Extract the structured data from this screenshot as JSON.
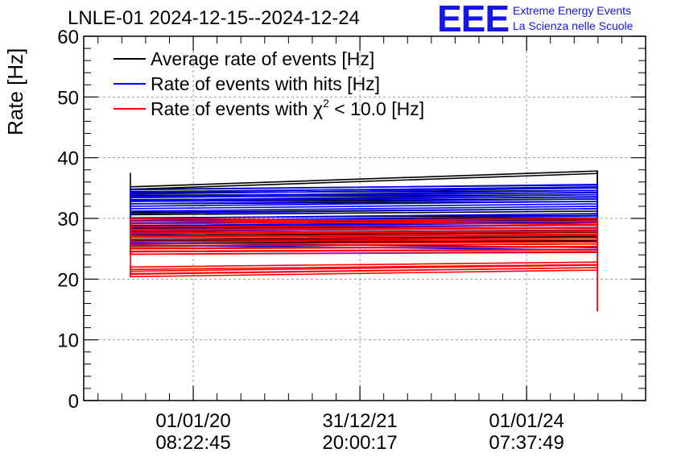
{
  "header": {
    "title": "LNLE-01 2024-12-15--2024-12-24",
    "logo": "EEE",
    "brand_line1": "Extreme Energy Events",
    "brand_line2": "La Scienza nelle Scuole"
  },
  "colors": {
    "black": "#000000",
    "blue": "#0000ff",
    "red": "#ff0000",
    "brand": "#1515e6"
  },
  "chart_data": {
    "type": "line",
    "ylabel": "Rate [Hz]",
    "xlabel": "",
    "ylim": [
      0,
      60
    ],
    "y_ticks": [
      "0",
      "10",
      "20",
      "30",
      "40",
      "50",
      "60"
    ],
    "x_ticks": [
      {
        "line1": "01/01/20",
        "line2": "08:22:45",
        "t": 0.13
      },
      {
        "line1": "31/12/21",
        "line2": "20:00:17",
        "t": 0.48
      },
      {
        "line1": "01/01/24",
        "line2": "07:37:49",
        "t": 0.83
      }
    ],
    "x_range": [
      -0.1,
      1.08
    ],
    "grid": true,
    "legend_position": "top-left",
    "series": [
      {
        "name": "Average rate of events [Hz]",
        "legend": "Average rate of events [Hz]",
        "color": "black",
        "x": [
          0,
          1
        ],
        "bands": [
          [
            35.2,
            37.8
          ],
          [
            34.8,
            35.5
          ],
          [
            34.2,
            34.6
          ],
          [
            33.5,
            33.9
          ],
          [
            32.8,
            33.2
          ],
          [
            31.0,
            31.6
          ],
          [
            30.1,
            30.5
          ],
          [
            29.2,
            29.8
          ],
          [
            28.4,
            28.9
          ],
          [
            27.6,
            28.1
          ],
          [
            27.0,
            27.4
          ],
          [
            26.3,
            26.8
          ],
          [
            25.8,
            26.2
          ]
        ],
        "end_drop_min": 25.5
      },
      {
        "name": "Rate of events with hits [Hz]",
        "legend": "Rate of events with hits [Hz]",
        "color": "blue",
        "x": [
          0,
          1
        ],
        "bands": [
          [
            34.7,
            35.6
          ],
          [
            34.0,
            35.0
          ],
          [
            33.4,
            34.3
          ],
          [
            32.8,
            33.6
          ],
          [
            32.0,
            32.8
          ],
          [
            31.2,
            32.0
          ],
          [
            30.0,
            30.8
          ],
          [
            29.2,
            29.9
          ],
          [
            28.6,
            29.3
          ],
          [
            27.8,
            28.5
          ],
          [
            26.0,
            25.2
          ],
          [
            24.5,
            24.9
          ]
        ],
        "end_drop_min": 24.0
      },
      {
        "name": "Rate of events with chi2 < 10.0 [Hz]",
        "legend_pre": "Rate of events with χ",
        "legend_sup": "2",
        "legend_post": " < 10.0 [Hz]",
        "color": "red",
        "x": [
          0,
          1
        ],
        "bands": [
          [
            30.0,
            29.4
          ],
          [
            29.5,
            30.0
          ],
          [
            28.6,
            28.9
          ],
          [
            28.0,
            28.4
          ],
          [
            27.5,
            27.8
          ],
          [
            26.9,
            27.2
          ],
          [
            26.2,
            26.5
          ],
          [
            25.5,
            25.8
          ],
          [
            25.0,
            25.3
          ],
          [
            24.5,
            24.8
          ],
          [
            22.0,
            22.8
          ],
          [
            21.3,
            22.3
          ],
          [
            20.8,
            21.9
          ]
        ],
        "end_drop_min": 14.7
      }
    ]
  }
}
